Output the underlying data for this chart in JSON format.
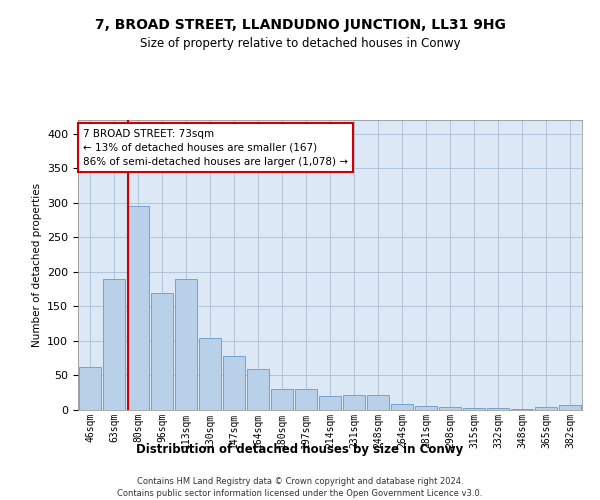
{
  "title": "7, BROAD STREET, LLANDUDNO JUNCTION, LL31 9HG",
  "subtitle": "Size of property relative to detached houses in Conwy",
  "xlabel": "Distribution of detached houses by size in Conwy",
  "ylabel": "Number of detached properties",
  "footer_line1": "Contains HM Land Registry data © Crown copyright and database right 2024.",
  "footer_line2": "Contains public sector information licensed under the Open Government Licence v3.0.",
  "categories": [
    "46sqm",
    "63sqm",
    "80sqm",
    "96sqm",
    "113sqm",
    "130sqm",
    "147sqm",
    "164sqm",
    "180sqm",
    "197sqm",
    "214sqm",
    "231sqm",
    "248sqm",
    "264sqm",
    "281sqm",
    "298sqm",
    "315sqm",
    "332sqm",
    "348sqm",
    "365sqm",
    "382sqm"
  ],
  "values": [
    63,
    190,
    295,
    170,
    190,
    105,
    78,
    60,
    30,
    30,
    20,
    22,
    22,
    8,
    6,
    4,
    3,
    3,
    1,
    4,
    7
  ],
  "bar_color": "#b8d0e8",
  "bar_edge_color": "#6699cc",
  "vline_color": "#cc0000",
  "vline_x_idx": 1.59,
  "annotation_text": "7 BROAD STREET: 73sqm\n← 13% of detached houses are smaller (167)\n86% of semi-detached houses are larger (1,078) →",
  "annotation_box_color": "#ffffff",
  "annotation_box_edge": "#cc0000",
  "ylim": [
    0,
    420
  ],
  "yticks": [
    0,
    50,
    100,
    150,
    200,
    250,
    300,
    350,
    400
  ],
  "plot_bg_color": "#dce8f5",
  "background_color": "#ffffff",
  "grid_color": "#b0c4d8",
  "title_fontsize": 10,
  "subtitle_fontsize": 8.5
}
